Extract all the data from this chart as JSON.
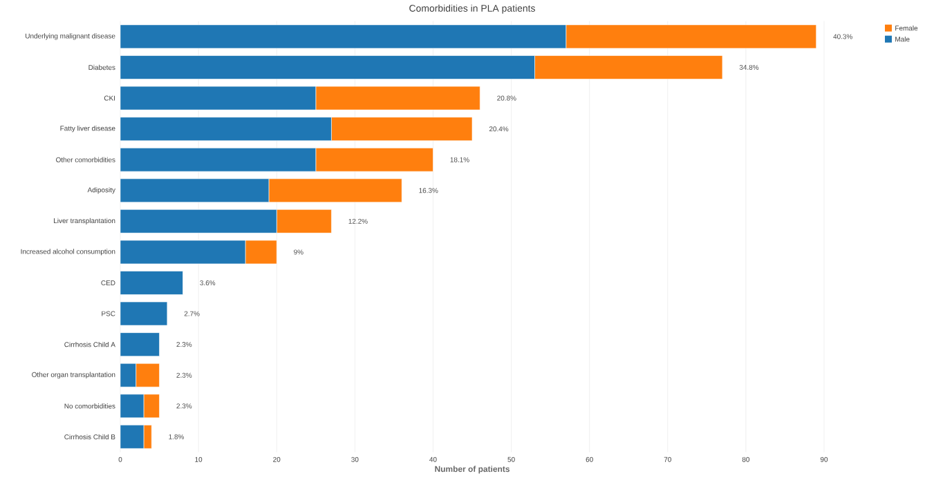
{
  "chart_data": {
    "type": "bar",
    "orientation": "horizontal",
    "stacked": true,
    "title": "Comorbidities in PLA patients",
    "xlabel": "Number of patients",
    "categories": [
      "Underlying malignant disease",
      "Diabetes",
      "CKI",
      "Fatty liver disease",
      "Other comorbidities",
      "Adiposity",
      "Liver transplantation",
      "Increased alcohol consumption",
      "CED",
      "PSC",
      "Cirrhosis Child A",
      "Other organ transplantation",
      "No comorbidities",
      "Cirrhosis Child B"
    ],
    "series": [
      {
        "name": "Male",
        "color": "#1f77b4",
        "values": [
          57,
          53,
          25,
          27,
          25,
          19,
          20,
          16,
          8,
          6,
          5,
          2,
          3,
          3
        ]
      },
      {
        "name": "Female",
        "color": "#ff7f0e",
        "values": [
          32,
          24,
          21,
          18,
          15,
          17,
          7,
          4,
          0,
          0,
          0,
          3,
          2,
          1
        ]
      }
    ],
    "xlim": [
      0,
      90
    ],
    "xticks": [
      0,
      10,
      20,
      30,
      40,
      50,
      60,
      70,
      80,
      90
    ],
    "grid": "x",
    "legend": "top right",
    "annotations": [
      {
        "text": "40.3%",
        "x": 89,
        "y": "Underlying malignant disease"
      },
      {
        "text": "34.8%",
        "x": 77,
        "y": "Diabetes"
      },
      {
        "text": "20.8%",
        "x": 46,
        "y": "CKI"
      },
      {
        "text": "20.4%",
        "x": 45,
        "y": "Fatty liver disease"
      },
      {
        "text": "18.1%",
        "x": 40,
        "y": "Other comorbidities"
      },
      {
        "text": "16.3%",
        "x": 36,
        "y": "Adiposity"
      },
      {
        "text": "12.2%",
        "x": 27,
        "y": "Liver transplantation"
      },
      {
        "text": "9%",
        "x": 20,
        "y": "Increased alcohol consumption"
      },
      {
        "text": "3.6%",
        "x": 8,
        "y": "CED"
      },
      {
        "text": "2.7%",
        "x": 6,
        "y": "PSC"
      },
      {
        "text": "2.3%",
        "x": 5,
        "y": "Cirrhosis Child A"
      },
      {
        "text": "2.3%",
        "x": 5,
        "y": "Other organ transplantation"
      },
      {
        "text": "2.3%",
        "x": 5,
        "y": "No comorbidities"
      },
      {
        "text": "1.8%",
        "x": 4,
        "y": "Cirrhosis Child B"
      }
    ]
  }
}
